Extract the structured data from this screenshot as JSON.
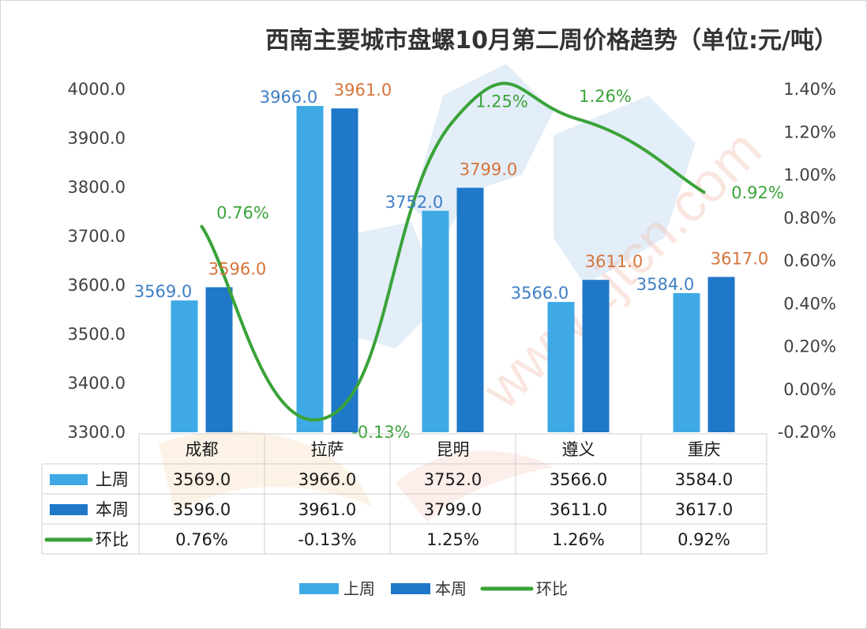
{
  "chart_data": {
    "type": "bar",
    "title": "西南主要城市盘螺10月第二周价格趋势（单位:元/吨）",
    "categories": [
      "成都",
      "拉萨",
      "昆明",
      "遵义",
      "重庆"
    ],
    "series": [
      {
        "name": "上周",
        "type": "bar",
        "color": "#3fa9e6",
        "values": [
          3569.0,
          3966.0,
          3752.0,
          3566.0,
          3584.0
        ],
        "labels": [
          "3569.0",
          "3966.0",
          "3752.0",
          "3566.0",
          "3584.0"
        ]
      },
      {
        "name": "本周",
        "type": "bar",
        "color": "#1f78c8",
        "values": [
          3596.0,
          3961.0,
          3799.0,
          3611.0,
          3617.0
        ],
        "labels": [
          "3596.0",
          "3961.0",
          "3799.0",
          "3611.0",
          "3617.0"
        ]
      },
      {
        "name": "环比",
        "type": "line",
        "color": "#3aa339",
        "values": [
          0.76,
          -0.13,
          1.25,
          1.26,
          0.92
        ],
        "labels": [
          "0.76%",
          "-0.13%",
          "1.25%",
          "1.26%",
          "0.92%"
        ]
      }
    ],
    "ylim": [
      3300,
      4000
    ],
    "y_ticks": [
      "3300.0",
      "3400.0",
      "3500.0",
      "3600.0",
      "3700.0",
      "3800.0",
      "3900.0",
      "4000.0"
    ],
    "y2lim": [
      -0.2,
      1.4
    ],
    "y2_ticks": [
      "-0.20%",
      "0.00%",
      "0.20%",
      "0.40%",
      "0.60%",
      "0.80%",
      "1.00%",
      "1.20%",
      "1.40%"
    ],
    "data_table": true,
    "legend_position": "bottom",
    "grid": false
  }
}
